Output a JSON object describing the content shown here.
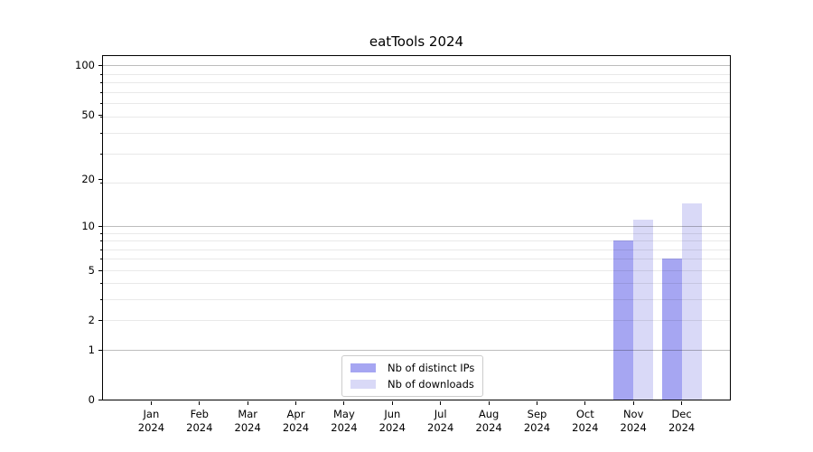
{
  "chart_data": {
    "type": "bar",
    "title": "eatTools 2024",
    "categories": [
      "Jan",
      "Feb",
      "Mar",
      "Apr",
      "May",
      "Jun",
      "Jul",
      "Aug",
      "Sep",
      "Oct",
      "Nov",
      "Dec"
    ],
    "x_tick_year": "2024",
    "series": [
      {
        "name": "Nb of distinct IPs",
        "color": "#a6a6f2",
        "values": [
          0,
          0,
          0,
          0,
          0,
          0,
          0,
          0,
          0,
          0,
          8,
          6
        ]
      },
      {
        "name": "Nb of downloads",
        "color": "#d9d9f7",
        "values": [
          0,
          0,
          0,
          0,
          0,
          0,
          0,
          0,
          0,
          0,
          11,
          14
        ]
      }
    ],
    "y_axis": {
      "scale": "log1p",
      "tick_values": [
        0,
        1,
        2,
        5,
        10,
        20,
        50,
        100
      ],
      "ylim": [
        0,
        114
      ],
      "major_gridlines": [
        1,
        10,
        100
      ],
      "minor_gridlines": [
        2,
        3,
        4,
        5,
        6,
        7,
        8,
        9,
        19,
        29,
        39,
        49,
        59,
        69,
        79,
        89
      ]
    },
    "legend": {
      "location": "lower center"
    },
    "grid": true,
    "colors": {
      "bar_distinct_ips": "#a6a6f2",
      "bar_downloads": "#d9d9f7",
      "major_grid": "#bfbfbf",
      "minor_grid": "#eaeaea",
      "spine": "#000000",
      "text": "#000000",
      "background": "#ffffff",
      "legend_border": "#cccccc"
    }
  }
}
